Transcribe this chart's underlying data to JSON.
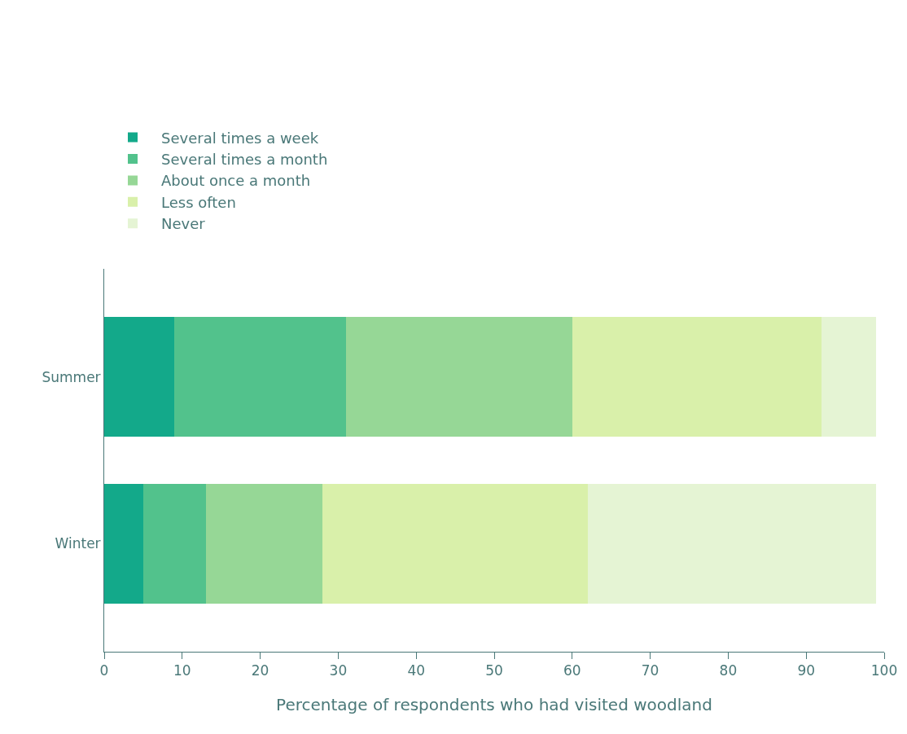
{
  "chart_data": {
    "type": "bar",
    "orientation": "horizontal",
    "stacked": true,
    "xlabel": "Percentage of respondents who had visited woodland",
    "categories": [
      "Summer",
      "Winter"
    ],
    "series": [
      {
        "name": "Several times a week",
        "color": "#13a98a",
        "values": [
          9,
          5
        ]
      },
      {
        "name": "Several times a month",
        "color": "#52c28c",
        "values": [
          22,
          8
        ]
      },
      {
        "name": "About once a month",
        "color": "#96d796",
        "values": [
          29,
          15
        ]
      },
      {
        "name": "Less often",
        "color": "#d9f0aa",
        "values": [
          32,
          34
        ]
      },
      {
        "name": "Never",
        "color": "#e5f4d4",
        "values": [
          7,
          37
        ]
      }
    ],
    "xlim": [
      0,
      100
    ],
    "xticks": [
      0,
      10,
      20,
      30,
      40,
      50,
      60,
      70,
      80,
      90,
      100
    ],
    "legend": "top left"
  }
}
